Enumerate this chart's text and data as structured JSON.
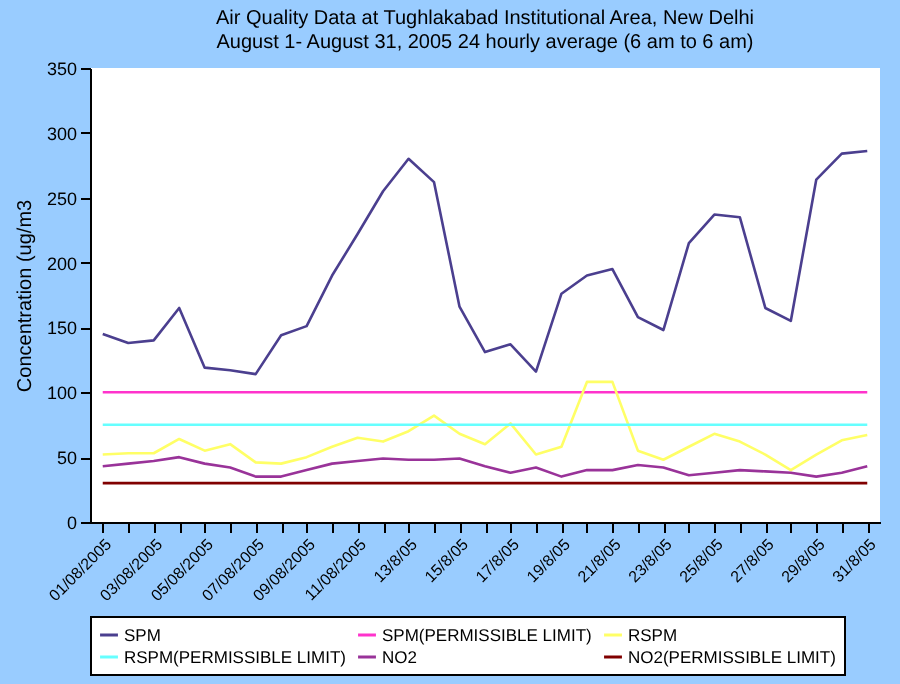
{
  "chart_data": {
    "type": "line",
    "title": "Air Quality Data at Tughlakabad Institutional Area, New Delhi",
    "subtitle": "August 1- August 31, 2005 24 hourly average (6 am to 6 am)",
    "ylabel": "Concentration (ug/m3",
    "categories": [
      "01/08/2005",
      null,
      "03/08/2005",
      null,
      "05/08/2005",
      null,
      "07/08/2005",
      null,
      "09/08/2005",
      null,
      "11/08/2005",
      null,
      "13/8/05",
      null,
      "15/8/05",
      null,
      "17/8/05",
      null,
      "19/8/05",
      null,
      "21/8/05",
      null,
      "23/8/05",
      null,
      "25/8/05",
      null,
      "27/8/05",
      null,
      "29/8/05",
      null,
      "31/8/05"
    ],
    "ylim": [
      0,
      350
    ],
    "yticks": [
      0,
      50,
      100,
      150,
      200,
      250,
      300,
      350
    ],
    "grid": false,
    "legend": "bottom",
    "marker": "none",
    "line_style": "solid",
    "series": [
      {
        "name": "SPM",
        "color": "#4b3f8f",
        "values": [
          145,
          138,
          140,
          165,
          119,
          117,
          114,
          144,
          151,
          190,
          222,
          255,
          280,
          262,
          166,
          131,
          137,
          116,
          176,
          190,
          195,
          158,
          148,
          215,
          237,
          235,
          165,
          155,
          264,
          284,
          286
        ]
      },
      {
        "name": "SPM(PERMISSIBLE LIMIT)",
        "color": "#ff33cc",
        "values": [
          100,
          100,
          100,
          100,
          100,
          100,
          100,
          100,
          100,
          100,
          100,
          100,
          100,
          100,
          100,
          100,
          100,
          100,
          100,
          100,
          100,
          100,
          100,
          100,
          100,
          100,
          100,
          100,
          100,
          100,
          100
        ]
      },
      {
        "name": "RSPM",
        "color": "#ffff66",
        "values": [
          52,
          53,
          53,
          64,
          55,
          60,
          46,
          45,
          50,
          58,
          65,
          62,
          70,
          82,
          68,
          60,
          76,
          52,
          58,
          108,
          108,
          55,
          48,
          58,
          68,
          62,
          52,
          40,
          52,
          63,
          67
        ]
      },
      {
        "name": "RSPM(PERMISSIBLE LIMIT)",
        "color": "#66ffff",
        "values": [
          75,
          75,
          75,
          75,
          75,
          75,
          75,
          75,
          75,
          75,
          75,
          75,
          75,
          75,
          75,
          75,
          75,
          75,
          75,
          75,
          75,
          75,
          75,
          75,
          75,
          75,
          75,
          75,
          75,
          75,
          75
        ]
      },
      {
        "name": "NO2",
        "color": "#993399",
        "values": [
          43,
          45,
          47,
          50,
          45,
          42,
          35,
          35,
          40,
          45,
          47,
          49,
          48,
          48,
          49,
          43,
          38,
          42,
          35,
          40,
          40,
          44,
          42,
          36,
          38,
          40,
          39,
          38,
          35,
          38,
          43
        ]
      },
      {
        "name": "NO2(PERMISSIBLE LIMIT)",
        "color": "#800000",
        "values": [
          30,
          30,
          30,
          30,
          30,
          30,
          30,
          30,
          30,
          30,
          30,
          30,
          30,
          30,
          30,
          30,
          30,
          30,
          30,
          30,
          30,
          30,
          30,
          30,
          30,
          30,
          30,
          30,
          30,
          30,
          30
        ]
      }
    ]
  }
}
